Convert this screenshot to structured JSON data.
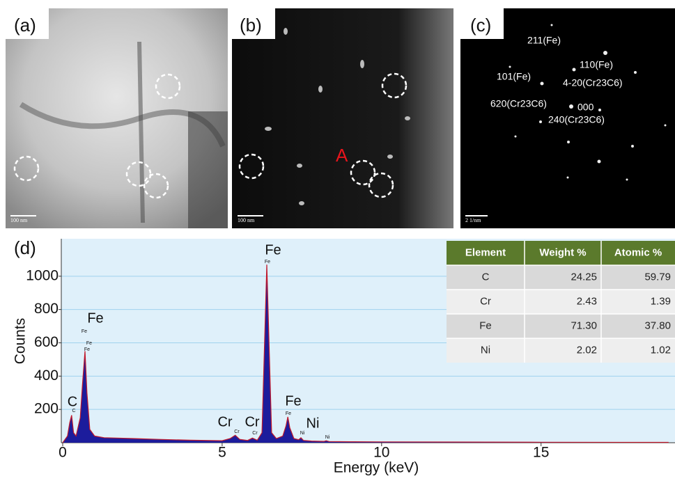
{
  "panels": [
    {
      "label": "(a)",
      "scale_bar": "100 nm"
    },
    {
      "label": "(b)",
      "scale_bar": "100 nm",
      "marker": "A"
    },
    {
      "label": "(c)",
      "scale_bar": "2 1/nm",
      "spots": [
        "211(Fe)",
        "110(Fe)",
        "101(Fe)",
        "4-20(Cr23C6)",
        "620(Cr23C6)",
        "000",
        "240(Cr23C6)"
      ]
    }
  ],
  "chart_data": {
    "type": "area",
    "panel_label": "(d)",
    "x_label": "Energy (keV)",
    "y_label": "Counts",
    "x": [
      0,
      0.15,
      0.22,
      0.28,
      0.34,
      0.42,
      0.55,
      0.62,
      0.7,
      0.76,
      0.85,
      1.0,
      1.3,
      1.7,
      2.2,
      3.0,
      4.0,
      5.0,
      5.25,
      5.41,
      5.55,
      5.8,
      5.95,
      6.1,
      6.25,
      6.33,
      6.4,
      6.47,
      6.55,
      6.7,
      6.9,
      7.0,
      7.06,
      7.12,
      7.25,
      7.4,
      7.47,
      7.55,
      7.8,
      8.2,
      8.26,
      8.35,
      9,
      10,
      12,
      15,
      19
    ],
    "values": [
      0,
      40,
      120,
      165,
      60,
      40,
      150,
      350,
      550,
      300,
      80,
      40,
      30,
      28,
      25,
      20,
      15,
      12,
      25,
      45,
      20,
      14,
      28,
      15,
      60,
      600,
      1070,
      600,
      60,
      25,
      40,
      100,
      155,
      90,
      25,
      18,
      30,
      14,
      10,
      8,
      12,
      7,
      6,
      5,
      4,
      3,
      2
    ],
    "color": "#1c1c9c",
    "edge_color": "#c0182a",
    "xlim": [
      0,
      19.2
    ],
    "ylim": [
      0,
      1225
    ],
    "xticks": [
      0,
      5,
      10,
      15
    ],
    "yticks": [
      200,
      400,
      600,
      800,
      1000
    ],
    "grid": true,
    "annotations": [
      "C",
      "Fe",
      "Cr",
      "Cr",
      "Fe",
      "Fe",
      "Ni"
    ],
    "small_labels": [
      "C",
      "Fe",
      "Fe",
      "Fe",
      "Cr",
      "Cr",
      "Fe",
      "Fe",
      "Ni",
      "Ni"
    ]
  },
  "table": {
    "header": [
      "Element",
      "Weight %",
      "Atomic %"
    ],
    "rows": [
      [
        "C",
        "24.25",
        "59.79"
      ],
      [
        "Cr",
        "2.43",
        "1.39"
      ],
      [
        "Fe",
        "71.30",
        "37.80"
      ],
      [
        "Ni",
        "2.02",
        "1.02"
      ]
    ]
  }
}
